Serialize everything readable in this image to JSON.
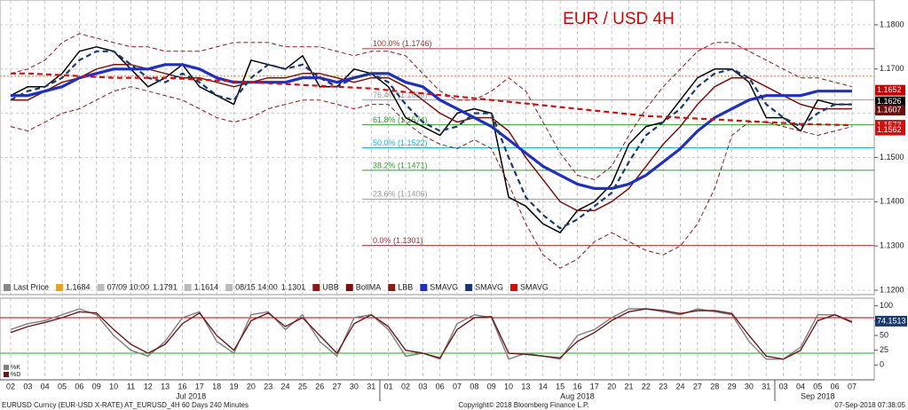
{
  "chart_data": [
    {
      "type": "line",
      "title": "EUR / USD 4H",
      "title_color": "#d00000",
      "categories": [
        "02",
        "03",
        "04",
        "05",
        "06",
        "09",
        "10",
        "11",
        "12",
        "13",
        "16",
        "17",
        "18",
        "19",
        "20",
        "23",
        "24",
        "25",
        "26",
        "27",
        "30",
        "31",
        "01",
        "02",
        "03",
        "06",
        "07",
        "08",
        "09",
        "10",
        "13",
        "14",
        "15",
        "16",
        "17",
        "20",
        "21",
        "22",
        "23",
        "24",
        "27",
        "28",
        "29",
        "30",
        "31",
        "03",
        "04",
        "05",
        "06",
        "07"
      ],
      "month_labels": [
        "Jul 2018",
        "Aug 2018",
        "Sep 2018"
      ],
      "ylim": [
        1.119,
        1.1856
      ],
      "yticks": [
        {
          "value": 1.12,
          "label": "1.1200"
        },
        {
          "value": 1.13,
          "label": "1.1300"
        },
        {
          "value": 1.14,
          "label": "1.1400"
        },
        {
          "value": 1.15,
          "label": "1.1500"
        },
        {
          "value": 1.16,
          "label": "1.1600"
        },
        {
          "value": 1.17,
          "label": "1.1700"
        },
        {
          "value": 1.18,
          "label": "1.1800"
        }
      ],
      "grid": true,
      "series": [
        {
          "color": "#000000",
          "style": "solid",
          "values": [
            1.164,
            1.166,
            1.166,
            1.169,
            1.174,
            1.175,
            1.174,
            1.17,
            1.166,
            1.168,
            1.171,
            1.166,
            1.164,
            1.162,
            1.172,
            1.171,
            1.17,
            1.173,
            1.166,
            1.166,
            1.17,
            1.169,
            1.166,
            1.159,
            1.157,
            1.155,
            1.16,
            1.161,
            1.16,
            1.141,
            1.139,
            1.135,
            1.133,
            1.138,
            1.14,
            1.144,
            1.153,
            1.157,
            1.158,
            1.163,
            1.168,
            1.17,
            1.17,
            1.167,
            1.159,
            1.159,
            1.156,
            1.163,
            1.162,
            1.162
          ]
        },
        {
          "name": "UBB",
          "color": "#8b1a1a",
          "style": "band",
          "values": [
            1.169,
            1.17,
            1.172,
            1.176,
            1.178,
            1.177,
            1.176,
            1.175,
            1.175,
            1.174,
            1.174,
            1.174,
            1.175,
            1.176,
            1.176,
            1.176,
            1.175,
            1.175,
            1.175,
            1.174,
            1.173,
            1.174,
            1.174,
            1.173,
            1.169,
            1.165,
            1.163,
            1.163,
            1.165,
            1.168,
            1.165,
            1.158,
            1.151,
            1.146,
            1.145,
            1.148,
            1.155,
            1.161,
            1.166,
            1.17,
            1.174,
            1.176,
            1.176,
            1.174,
            1.172,
            1.17,
            1.168,
            1.168,
            1.167,
            1.166
          ]
        },
        {
          "name": "BollMA",
          "color": "#7a1010",
          "style": "solid",
          "values": [
            1.163,
            1.163,
            1.165,
            1.167,
            1.168,
            1.17,
            1.171,
            1.171,
            1.17,
            1.169,
            1.168,
            1.168,
            1.167,
            1.166,
            1.167,
            1.168,
            1.168,
            1.169,
            1.169,
            1.168,
            1.167,
            1.168,
            1.168,
            1.166,
            1.163,
            1.16,
            1.158,
            1.159,
            1.159,
            1.156,
            1.15,
            1.145,
            1.14,
            1.138,
            1.138,
            1.14,
            1.143,
            1.148,
            1.153,
            1.157,
            1.162,
            1.166,
            1.168,
            1.168,
            1.166,
            1.164,
            1.162,
            1.161,
            1.161,
            1.161
          ]
        },
        {
          "name": "LBB",
          "color": "#8b1a1a",
          "style": "band",
          "values": [
            1.157,
            1.156,
            1.158,
            1.16,
            1.161,
            1.163,
            1.165,
            1.166,
            1.165,
            1.164,
            1.163,
            1.161,
            1.159,
            1.158,
            1.159,
            1.161,
            1.162,
            1.163,
            1.163,
            1.162,
            1.161,
            1.162,
            1.162,
            1.158,
            1.155,
            1.153,
            1.152,
            1.154,
            1.152,
            1.144,
            1.135,
            1.128,
            1.125,
            1.127,
            1.131,
            1.133,
            1.131,
            1.129,
            1.128,
            1.13,
            1.135,
            1.143,
            1.155,
            1.158,
            1.158,
            1.157,
            1.156,
            1.155,
            1.156,
            1.157
          ]
        },
        {
          "name": "SMAVG",
          "color": "#1f2fbf",
          "style": "thick",
          "values": [
            1.164,
            1.164,
            1.165,
            1.166,
            1.168,
            1.169,
            1.17,
            1.17,
            1.17,
            1.171,
            1.171,
            1.17,
            1.168,
            1.167,
            1.167,
            1.167,
            1.167,
            1.168,
            1.168,
            1.167,
            1.168,
            1.169,
            1.169,
            1.167,
            1.166,
            1.163,
            1.161,
            1.159,
            1.157,
            1.154,
            1.151,
            1.148,
            1.146,
            1.144,
            1.143,
            1.143,
            1.144,
            1.146,
            1.149,
            1.152,
            1.156,
            1.159,
            1.161,
            1.163,
            1.164,
            1.164,
            1.164,
            1.165,
            1.165,
            1.165
          ]
        },
        {
          "name": "SMAVG",
          "color": "#1a3a6e",
          "style": "dashed",
          "values": [
            1.163,
            1.165,
            1.166,
            1.168,
            1.172,
            1.174,
            1.174,
            1.171,
            1.168,
            1.167,
            1.169,
            1.167,
            1.164,
            1.163,
            1.168,
            1.171,
            1.17,
            1.171,
            1.168,
            1.166,
            1.168,
            1.169,
            1.167,
            1.162,
            1.158,
            1.156,
            1.157,
            1.16,
            1.16,
            1.15,
            1.141,
            1.137,
            1.134,
            1.136,
            1.139,
            1.142,
            1.149,
            1.155,
            1.158,
            1.161,
            1.166,
            1.169,
            1.17,
            1.168,
            1.162,
            1.159,
            1.157,
            1.16,
            1.162,
            1.162
          ]
        },
        {
          "name": "SMAVG",
          "color": "#d01010",
          "style": "dashed",
          "values": [
            1.169,
            1.169,
            1.1688,
            1.1686,
            1.1684,
            1.1682,
            1.168,
            1.168,
            1.168,
            1.168,
            1.1678,
            1.1676,
            1.1674,
            1.1672,
            1.167,
            1.1668,
            1.1666,
            1.1664,
            1.1662,
            1.166,
            1.1658,
            1.1656,
            1.1652,
            1.1648,
            1.1645,
            1.1641,
            1.1638,
            1.1634,
            1.163,
            1.1626,
            1.1622,
            1.1618,
            1.1614,
            1.161,
            1.1606,
            1.1602,
            1.1598,
            1.1594,
            1.1592,
            1.159,
            1.1588,
            1.1586,
            1.1584,
            1.1582,
            1.158,
            1.1578,
            1.1576,
            1.1575,
            1.1574,
            1.1573
          ]
        }
      ],
      "fib_levels": [
        {
          "value": 1.1746,
          "label": "100.0% (1.1746)",
          "color": "#a83232"
        },
        {
          "value": 1.163,
          "label": "76.4% (1.1630)",
          "color": "#999999"
        },
        {
          "value": 1.1574,
          "label": "61.8% (1.1574)",
          "color": "#2ca02c"
        },
        {
          "value": 1.1522,
          "label": "50.0% (1.1522)",
          "color": "#17b5d6"
        },
        {
          "value": 1.1471,
          "label": "38.2% (1.1471)",
          "color": "#2ca02c"
        },
        {
          "value": 1.1406,
          "label": "23.6% (1.1406)",
          "color": "#999999"
        },
        {
          "value": 1.1301,
          "label": "0.0% (1.1301)",
          "color": "#a83232"
        }
      ],
      "last_price": {
        "label": "Last Price",
        "value": 1.1684,
        "color": "#e8a317"
      },
      "high": {
        "label": "07/09 10:00",
        "value": 1.1791
      },
      "average": 1.1614,
      "low": {
        "label": "08/15 14:00",
        "value": 1.1301
      },
      "price_tags": [
        {
          "value": 1.1652,
          "color": "#c00000"
        },
        {
          "value": 1.1626,
          "color": "#000000"
        },
        {
          "value": 1.1607,
          "color": "#6b0f0f"
        },
        {
          "value": 1.1573,
          "color": "#d01010"
        },
        {
          "value": 1.1562,
          "color": "#d01010"
        }
      ]
    },
    {
      "type": "line",
      "ylim": [
        -25,
        113
      ],
      "yticks": [
        0,
        25,
        50,
        75,
        100
      ],
      "levels": [
        {
          "value": 80,
          "color": "#c00000"
        },
        {
          "value": 20,
          "color": "#22aa22"
        }
      ],
      "series": [
        {
          "name": "%K",
          "color": "#7f7f7f",
          "values": [
            60,
            70,
            75,
            85,
            95,
            85,
            50,
            25,
            15,
            40,
            80,
            90,
            40,
            20,
            85,
            90,
            60,
            85,
            40,
            15,
            80,
            85,
            60,
            15,
            20,
            10,
            70,
            85,
            80,
            10,
            20,
            15,
            10,
            50,
            60,
            80,
            95,
            95,
            90,
            85,
            95,
            90,
            85,
            40,
            10,
            10,
            30,
            85,
            85,
            74
          ]
        },
        {
          "name": "%D",
          "color": "#6b1a1a",
          "values": [
            55,
            65,
            72,
            80,
            90,
            88,
            60,
            35,
            20,
            35,
            70,
            88,
            50,
            25,
            75,
            88,
            65,
            80,
            50,
            20,
            70,
            85,
            65,
            25,
            20,
            12,
            60,
            80,
            82,
            20,
            18,
            15,
            12,
            40,
            55,
            75,
            90,
            95,
            92,
            87,
            92,
            92,
            87,
            50,
            15,
            10,
            25,
            75,
            85,
            72
          ]
        }
      ],
      "last_tag": {
        "value": 74.1513,
        "color": "#1a3a6e"
      }
    }
  ],
  "footer": {
    "left": "EURUSD Curncy (EUR-USD X-RATE) AT_EURUSD_4H 60 Days 240 Minutes",
    "center": "Copyright© 2018 Bloomberg Finance L.P.",
    "right": "07-Sep-2018 07:38:05"
  }
}
